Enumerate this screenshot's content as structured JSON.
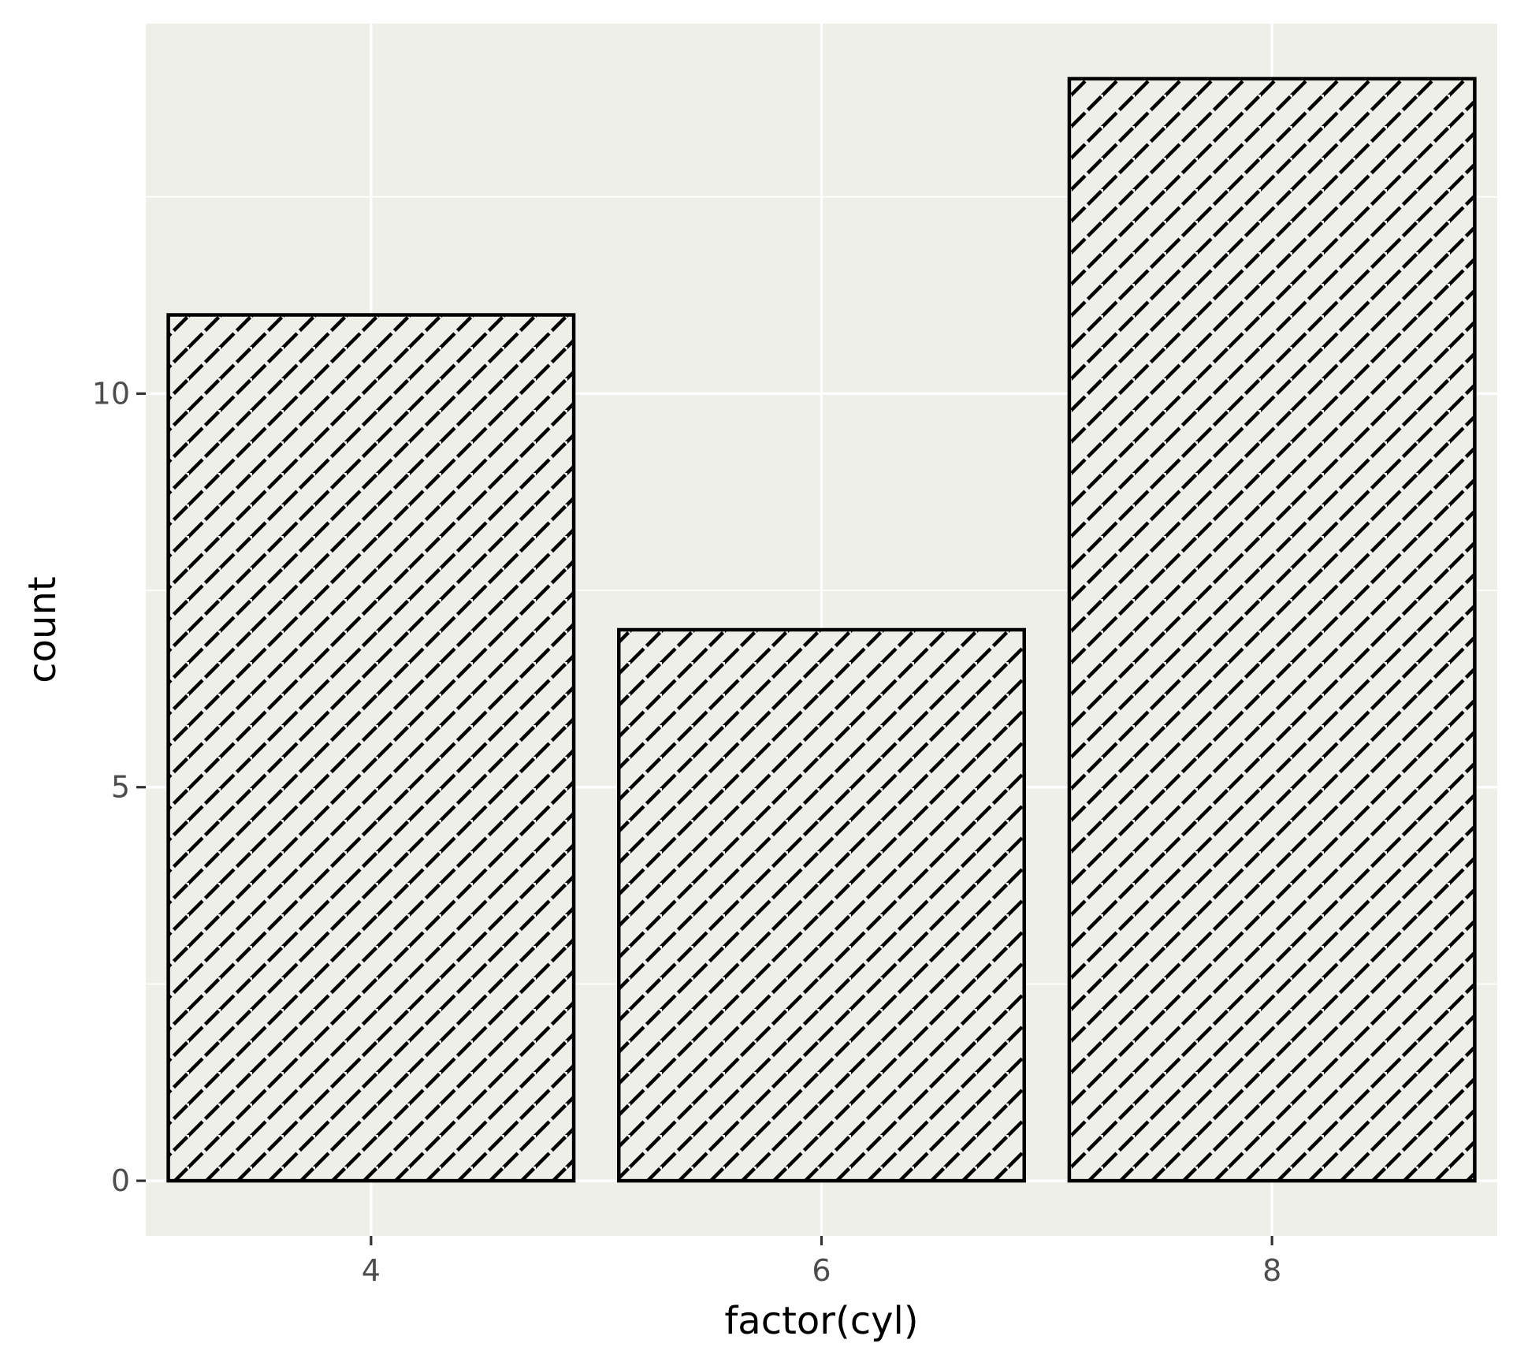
{
  "chart_data": {
    "type": "bar",
    "categories": [
      "4",
      "6",
      "8"
    ],
    "values": [
      11,
      7,
      14
    ],
    "title": "",
    "xlabel": "factor(cyl)",
    "ylabel": "count",
    "ylim": [
      -0.7,
      14.7
    ],
    "xlim": [
      3,
      9
    ],
    "x_positions": [
      4,
      6,
      8
    ],
    "bar_width_units": 1.8,
    "y_ticks": [
      0,
      5,
      10
    ],
    "y_tick_labels": [
      "0",
      "5",
      "10"
    ],
    "x_tick_labels": [
      "4",
      "6",
      "8"
    ],
    "grid": true,
    "legend": "none",
    "bar_fill": "hatched",
    "colors": {
      "panel": "#efefe9",
      "grid": "#ffffff",
      "bar_outline": "#000000",
      "bar_fill": "#efefe9",
      "tick_text": "#4d4d4d",
      "axis_title": "#000000"
    }
  }
}
